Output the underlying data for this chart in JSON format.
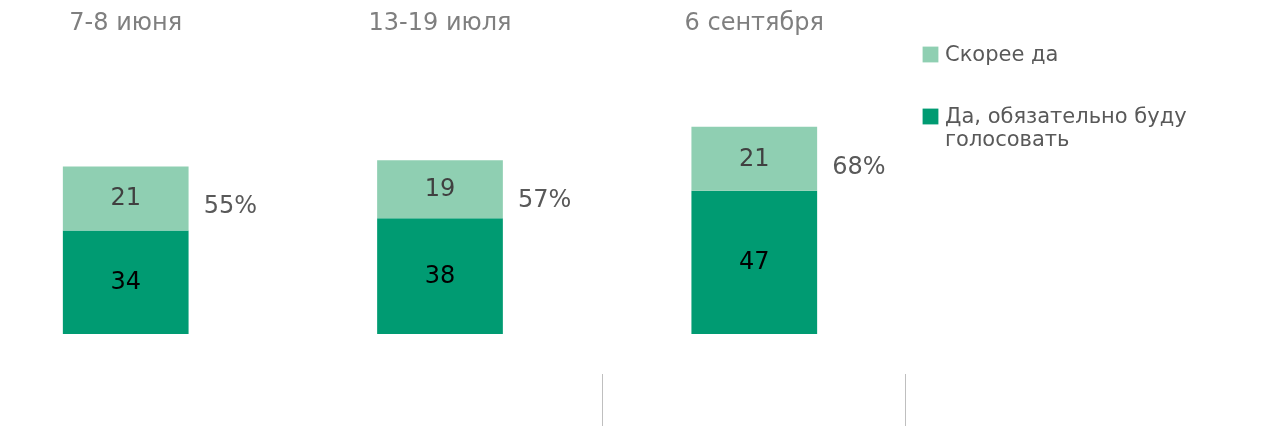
{
  "chart_data": {
    "type": "bar",
    "stacked": true,
    "categories": [
      "7-8 июня",
      "13-19 июля",
      "6 сентября"
    ],
    "series": [
      {
        "name": "Да, обязательно буду голосовать",
        "color": "#009b72",
        "values": [
          34,
          38,
          47
        ]
      },
      {
        "name": "Скорее да",
        "color": "#8fcfb2",
        "values": [
          21,
          19,
          21
        ]
      }
    ],
    "data_labels": true,
    "totals": [
      "55%",
      "57%",
      "68%"
    ],
    "legend": "right"
  }
}
